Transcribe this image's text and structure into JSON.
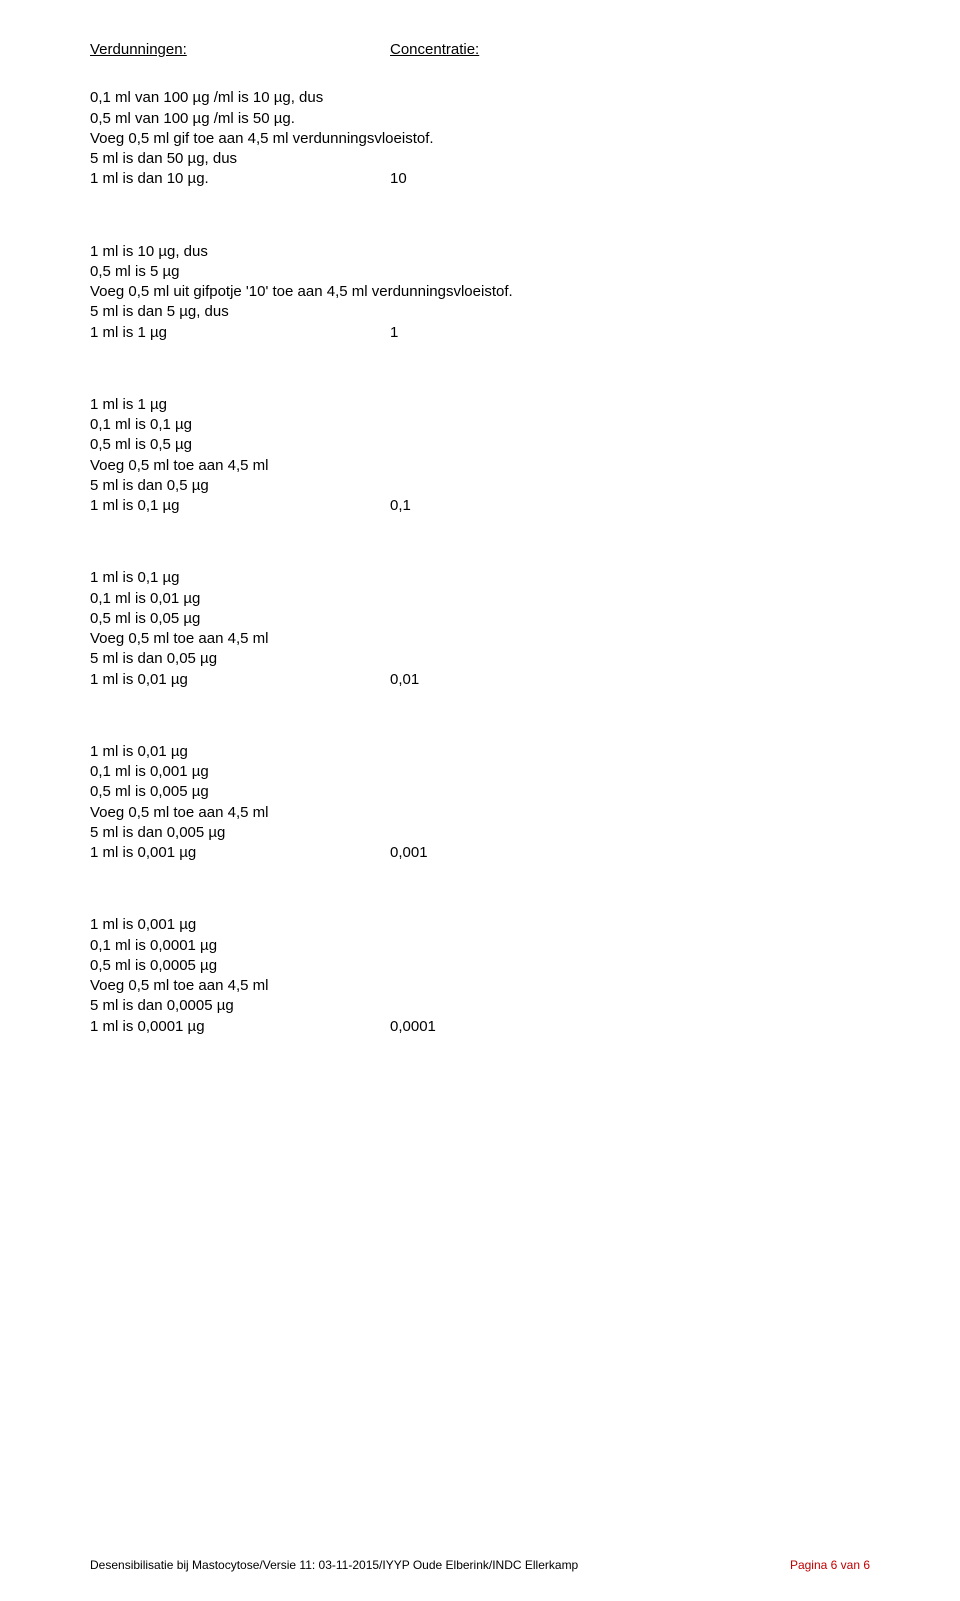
{
  "headers": {
    "dilutions": "Verdunningen:",
    "concentration": "Concentratie:"
  },
  "blocks": [
    {
      "lines": [
        "0,1 ml van 100 µg /ml is 10 µg, dus",
        "0,5 ml van 100 µg /ml is 50 µg.",
        "Voeg 0,5 ml gif toe aan 4,5 ml verdunningsvloeistof.",
        "5 ml is dan 50 µg, dus"
      ],
      "result_left": "1 ml is dan 10 µg.",
      "result_right": "10"
    },
    {
      "lines": [
        "1 ml is 10 µg, dus",
        "0,5 ml is 5 µg",
        "Voeg 0,5 ml uit gifpotje '10' toe aan 4,5 ml verdunningsvloeistof.",
        "5 ml is dan 5 µg, dus"
      ],
      "result_left": "1 ml is 1 µg",
      "result_right": "1"
    },
    {
      "lines": [
        "1 ml is 1 µg",
        "0,1 ml is 0,1 µg",
        "0,5 ml is 0,5 µg",
        "Voeg 0,5 ml toe aan 4,5 ml",
        "5 ml is dan 0,5 µg"
      ],
      "result_left": "1 ml is 0,1 µg",
      "result_right": "0,1"
    },
    {
      "lines": [
        "1 ml is 0,1 µg",
        "0,1 ml is 0,01 µg",
        "0,5 ml is 0,05 µg",
        "Voeg 0,5 ml toe aan 4,5 ml",
        "5 ml is dan 0,05 µg"
      ],
      "result_left": "1 ml is 0,01 µg",
      "result_right": "0,01"
    },
    {
      "lines": [
        "1 ml is 0,01 µg",
        "0,1 ml is 0,001 µg",
        "0,5 ml is 0,005 µg",
        "Voeg 0,5 ml toe aan 4,5 ml",
        "5 ml is dan 0,005 µg"
      ],
      "result_left": "1 ml is 0,001 µg",
      "result_right": "0,001"
    },
    {
      "lines": [
        "1 ml is 0,001 µg",
        "0,1 ml is 0,0001 µg",
        "0,5 ml is 0,0005 µg",
        "Voeg 0,5 ml toe aan 4,5 ml",
        "5 ml is dan 0,0005 µg"
      ],
      "result_left": "1 ml is 0,0001 µg",
      "result_right": "0,0001"
    }
  ],
  "footer": {
    "left": "Desensibilisatie bij Mastocytose/Versie 11: 03-11-2015/IYYP Oude Elberink/INDC Ellerkamp",
    "page": "Pagina 6 van 6"
  }
}
